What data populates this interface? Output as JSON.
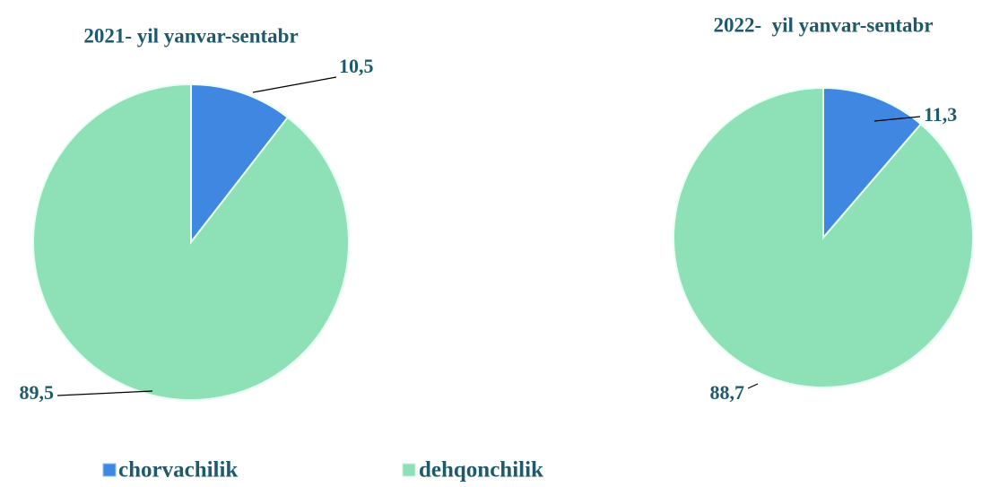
{
  "chart_data": [
    {
      "type": "pie",
      "title": "2021- yil yanvar-sentabr",
      "categories": [
        "chorvachilik",
        "dehqonchilik"
      ],
      "values": [
        10.5,
        89.5
      ],
      "value_labels": [
        "10,5",
        "89,5"
      ],
      "colors": [
        "#3f87e0",
        "#8ee0b6"
      ]
    },
    {
      "type": "pie",
      "title": "2022-  yil yanvar-sentabr",
      "categories": [
        "chorvachilik",
        "dehqonchilik"
      ],
      "values": [
        11.3,
        88.7
      ],
      "value_labels": [
        "11,3",
        "88,7"
      ],
      "colors": [
        "#3f87e0",
        "#8ee0b6"
      ]
    }
  ]
}
